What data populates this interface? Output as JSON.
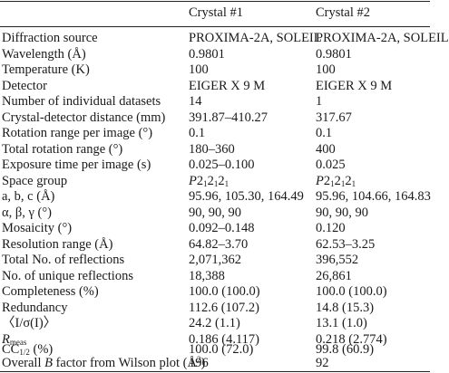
{
  "table": {
    "headers": [
      "",
      "Crystal #1",
      "Crystal #2"
    ],
    "rows": [
      {
        "label": "Diffraction source",
        "c1": "PROXIMA-2A, SOLEIL",
        "c2": "PROXIMA-2A, SOLEIL"
      },
      {
        "label": "Wavelength (Å)",
        "c1": "0.9801",
        "c2": "0.9801"
      },
      {
        "label": "Temperature (K)",
        "c1": "100",
        "c2": "100"
      },
      {
        "label": "Detector",
        "c1": "EIGER X 9 M",
        "c2": "EIGER X 9 M"
      },
      {
        "label": "Number of individual datasets",
        "c1": "14",
        "c2": "1"
      },
      {
        "label": "Crystal-detector distance (mm)",
        "c1": "391.87–410.27",
        "c2": "317.67"
      },
      {
        "label": "Rotation range per image (°)",
        "c1": "0.1",
        "c2": "0.1"
      },
      {
        "label": "Total rotation range (°)",
        "c1": "180–360",
        "c2": "400"
      },
      {
        "label": "Exposure time per image (s)",
        "c1": "0.025–0.100",
        "c2": "0.025"
      },
      {
        "label": "Space group",
        "c1_parts": [
          "P",
          "2",
          "1",
          "2",
          "1",
          "2",
          "1"
        ],
        "c2_parts": [
          "P",
          "2",
          "1",
          "2",
          "1",
          "2",
          "1"
        ]
      },
      {
        "label": "a, b, c (Å)",
        "c1": "95.96, 105.30, 164.49",
        "c2": "95.96, 104.66, 164.83"
      },
      {
        "label": "α, β, γ (°)",
        "c1": "90, 90, 90",
        "c2": "90, 90, 90"
      },
      {
        "label": "Mosaicity (°)",
        "c1": "0.092–0.148",
        "c2": "0.120"
      },
      {
        "label": "Resolution range (Å)",
        "c1": "64.82–3.70",
        "c2": "62.53–3.25"
      },
      {
        "label": "Total No. of reflections",
        "c1": "2,071,362",
        "c2": "396,552"
      },
      {
        "label": "No. of unique reflections",
        "c1": "18,388",
        "c2": "26,861"
      },
      {
        "label": "Completeness (%)",
        "c1": "100.0 (100.0)",
        "c2": "100.0 (100.0)"
      },
      {
        "label": "Redundancy",
        "c1": "112.6 (107.2)",
        "c2": "14.8 (15.3)"
      },
      {
        "label": "〈I/σ(I)〉",
        "c1": "24.2 (1.1)",
        "c2": "13.1 (1.0)"
      },
      {
        "label_parts": [
          "R",
          "meas"
        ],
        "c1": "0.186 (4.117)",
        "c2": "0.218 (2.774)"
      },
      {
        "label_parts": [
          "CC",
          "1/2",
          " (%)"
        ],
        "c1": "100.0 (72.0)",
        "c2": "99.8 (60.9)"
      },
      {
        "label_parts": [
          "Overall ",
          "B",
          " factor from Wilson plot (Å",
          "2",
          ")"
        ],
        "c1": "196",
        "c2": "92"
      }
    ]
  }
}
